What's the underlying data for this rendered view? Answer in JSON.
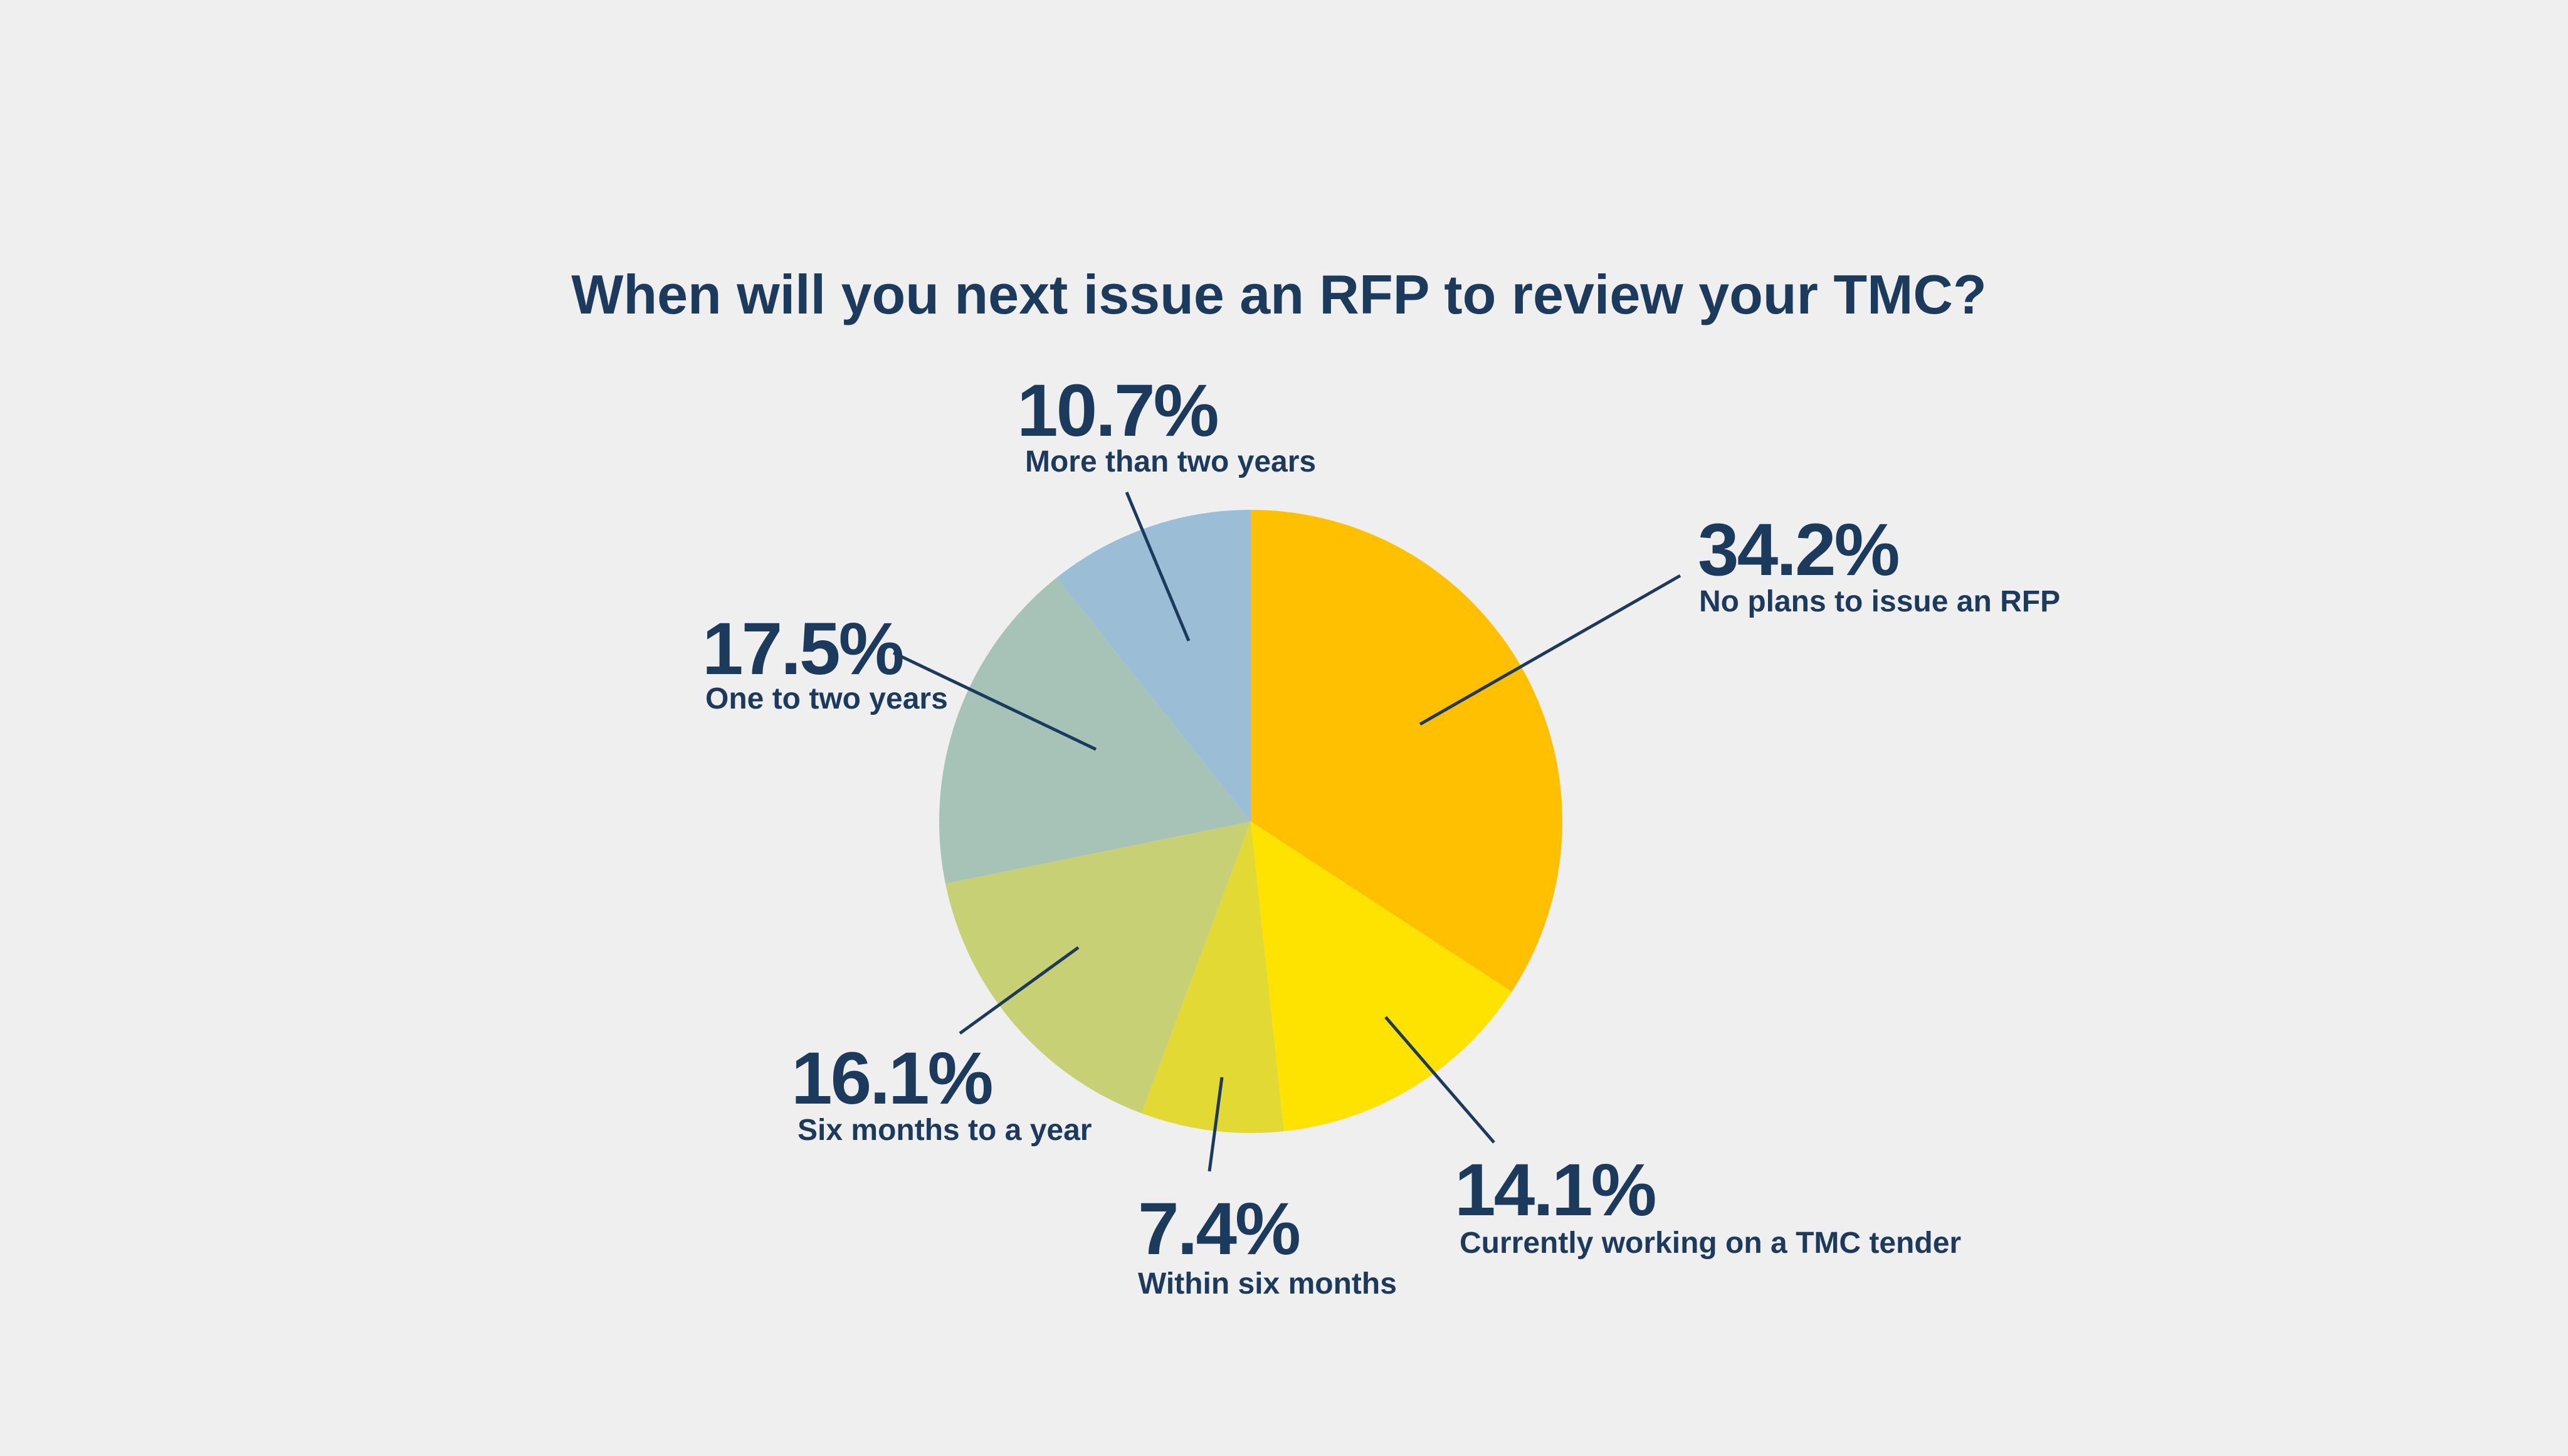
{
  "chart_data": {
    "type": "pie",
    "title": "When will you next issue an RFP to review your TMC?",
    "slices": [
      {
        "label": "No plans to issue an RFP",
        "value": 34.2,
        "value_label": "34.2%",
        "color": "#fec000"
      },
      {
        "label": "Currently working on a TMC tender",
        "value": 14.1,
        "value_label": "14.1%",
        "color": "#fee300"
      },
      {
        "label": "Within six months",
        "value": 7.4,
        "value_label": "7.4%",
        "color": "#e3d935"
      },
      {
        "label": "Six months to a year",
        "value": 16.1,
        "value_label": "16.1%",
        "color": "#c8d075"
      },
      {
        "label": "One to two years",
        "value": 17.5,
        "value_label": "17.5%",
        "color": "#a7c2b6"
      },
      {
        "label": "More than two years",
        "value": 10.7,
        "value_label": "10.7%",
        "color": "#9bbdd6"
      }
    ],
    "start_angle": "12 o'clock",
    "direction": "clockwise",
    "legend": "none",
    "label_color": "#1b3a5c"
  }
}
